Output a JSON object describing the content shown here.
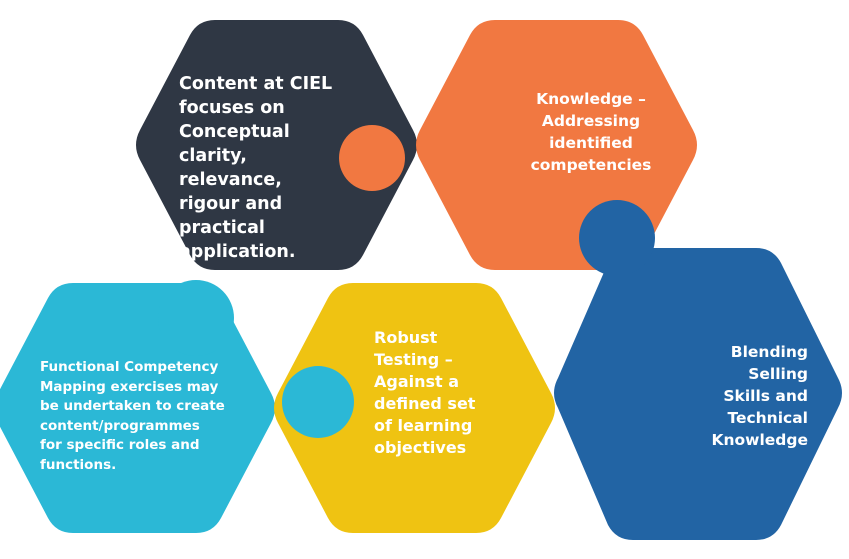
{
  "pieces": [
    {
      "id": "dark",
      "color": "#2f3744",
      "lines": [
        "Content at CIEL",
        "focuses on",
        "Conceptual",
        "clarity,",
        "relevance,",
        "rigour and",
        "practical",
        "application."
      ]
    },
    {
      "id": "orange",
      "color": "#f17841",
      "lines": [
        "Knowledge –",
        "Addressing",
        "identified",
        "competencies"
      ]
    },
    {
      "id": "cyan",
      "color": "#2bb8d6",
      "lines": [
        "Functional Competency",
        "Mapping exercises may",
        "be undertaken to create",
        "content/programmes",
        "for specific roles and",
        "functions."
      ]
    },
    {
      "id": "yellow",
      "color": "#efc312",
      "lines": [
        "Robust",
        "Testing –",
        "Against a",
        "defined set",
        "of learning",
        "objectives"
      ]
    },
    {
      "id": "blue",
      "color": "#2264a4",
      "lines": [
        "Blending",
        "Selling",
        "Skills and",
        "Technical",
        "Knowledge"
      ]
    }
  ]
}
